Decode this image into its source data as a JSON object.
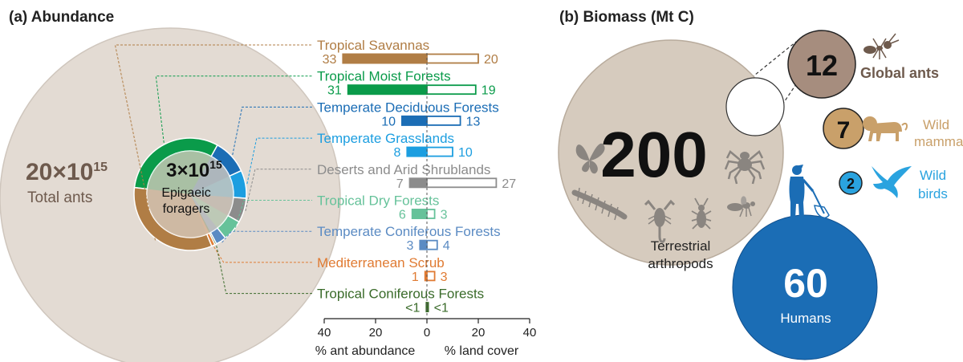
{
  "colors": {
    "big_circle": "#e3dbd3",
    "big_circle_edge": "#cfc6bd",
    "inner_disc": "#d6cbbe",
    "ant_brown": "#6e5a4d",
    "human_blue": "#1b6db5",
    "bird_blue": "#2aa3df",
    "mammal_tan": "#c9a06a"
  },
  "panel_a": {
    "title": "(a) Abundance",
    "total_value": "20×10",
    "total_exp": "15",
    "total_label": "Total ants",
    "epigaeic_value": "3×10",
    "epigaeic_exp": "15",
    "epigaeic_line1": "Epigaeic",
    "epigaeic_line2": "foragers",
    "xlabel_left": "% ant abundance",
    "xlabel_right": "% land cover"
  },
  "chart_data": [
    {
      "type": "bar",
      "orientation": "horizontal-diverging",
      "categories": [
        "Tropical Savannas",
        "Tropical Moist Forests",
        "Temperate Deciduous Forests",
        "Temperate Grasslands",
        "Deserts and Arid Shrublands",
        "Tropical Dry Forests",
        "Temperate Coniferous Forests",
        "Mediterranean Scrub",
        "Tropical Coniferous Forests"
      ],
      "series": [
        {
          "name": "% ant abundance",
          "values": [
            33,
            31,
            10,
            8,
            7,
            6,
            3,
            1,
            0.5
          ]
        },
        {
          "name": "% land cover",
          "values": [
            20,
            19,
            13,
            10,
            27,
            3,
            4,
            3,
            0.5
          ]
        }
      ],
      "value_labels_left": [
        "33",
        "31",
        "10",
        "8",
        "7",
        "6",
        "3",
        "1",
        "<1"
      ],
      "value_labels_right": [
        "20",
        "19",
        "13",
        "10",
        "27",
        "3",
        "4",
        "3",
        "<1"
      ],
      "colors": [
        "#b07d45",
        "#0a9b4a",
        "#1b6db5",
        "#1c9ee0",
        "#8c8c8c",
        "#66c29a",
        "#5b8bc3",
        "#e07b33",
        "#3a6b2a"
      ],
      "xlim": [
        -40,
        40
      ],
      "xticks": [
        "40",
        "20",
        "0",
        "20",
        "40"
      ],
      "xlabel": "% ant abundance     % land cover"
    },
    {
      "type": "pie",
      "description_role": "donut of epigaeic foragers by biome",
      "slices": [
        {
          "category": "Tropical Savannas",
          "value": 33
        },
        {
          "category": "Tropical Moist Forests",
          "value": 31
        },
        {
          "category": "Temperate Deciduous Forests",
          "value": 10
        },
        {
          "category": "Temperate Grasslands",
          "value": 8
        },
        {
          "category": "Deserts and Arid Shrublands",
          "value": 7
        },
        {
          "category": "Tropical Dry Forests",
          "value": 6
        },
        {
          "category": "Temperate Coniferous Forests",
          "value": 3
        },
        {
          "category": "Mediterranean Scrub",
          "value": 1
        },
        {
          "category": "Tropical Coniferous Forests",
          "value": 0.5
        }
      ]
    },
    {
      "type": "bubble",
      "title": "(b) Biomass (Mt C)",
      "items": [
        {
          "label": "Terrestrial arthropods",
          "value": 200
        },
        {
          "label": "Global ants",
          "value": 12
        },
        {
          "label": "Wild mammals",
          "value": 7
        },
        {
          "label": "Wild birds",
          "value": 2
        },
        {
          "label": "Humans",
          "value": 60
        }
      ]
    }
  ],
  "panel_b": {
    "title": "(b) Biomass (Mt C)",
    "arthropods_value": "200",
    "arthropods_line1": "Terrestrial",
    "arthropods_line2": "arthropods",
    "ants_value": "12",
    "ants_label": "Global ants",
    "mammals_value": "7",
    "mammals_line1": "Wild",
    "mammals_line2": "mammals",
    "birds_value": "2",
    "birds_line1": "Wild",
    "birds_line2": "birds",
    "humans_value": "60",
    "humans_label": "Humans"
  },
  "icons": [
    "butterfly-icon",
    "centipede-icon",
    "scorpion-icon",
    "beetle-icon",
    "tarantula-icon",
    "wasp-icon",
    "ant-icon",
    "lion-icon",
    "bird-icon",
    "human-icon"
  ]
}
